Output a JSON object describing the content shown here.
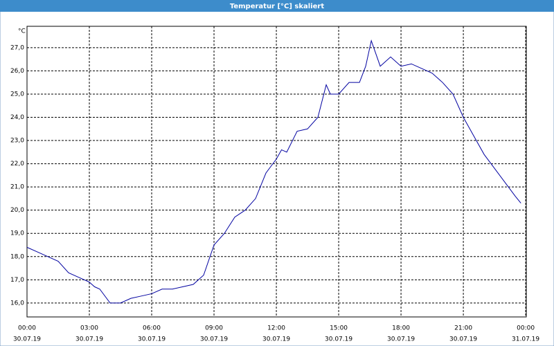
{
  "chart_data": {
    "type": "line",
    "title": "Temperatur [°C] skaliert",
    "y_unit": "°C",
    "x": [
      0,
      0.5,
      1.0,
      1.5,
      2.0,
      2.5,
      3.0,
      3.25,
      3.5,
      4.0,
      4.5,
      5.0,
      5.5,
      6.0,
      6.5,
      7.0,
      7.5,
      8.0,
      8.5,
      9.0,
      9.5,
      10.0,
      10.5,
      11.0,
      11.5,
      12.0,
      12.25,
      12.5,
      13.0,
      13.5,
      14.0,
      14.4,
      14.6,
      15.0,
      15.5,
      16.0,
      16.3,
      16.57,
      17.0,
      17.5,
      18.0,
      18.5,
      19.0,
      19.5,
      20.0,
      20.5,
      21.0,
      21.5,
      22.0,
      22.5,
      23.0,
      23.5,
      23.77
    ],
    "series": [
      {
        "name": "Temperatur",
        "color": "#0000a0",
        "values": [
          18.4,
          18.2,
          18.0,
          17.8,
          17.3,
          17.1,
          16.9,
          16.7,
          16.6,
          16.0,
          16.0,
          16.2,
          16.3,
          16.4,
          16.6,
          16.6,
          16.7,
          16.8,
          17.2,
          18.5,
          19.0,
          19.7,
          20.0,
          20.5,
          21.6,
          22.2,
          22.6,
          22.5,
          23.4,
          23.5,
          24.0,
          25.4,
          25.0,
          25.0,
          25.5,
          25.5,
          26.2,
          27.3,
          26.2,
          26.6,
          26.2,
          26.3,
          26.1,
          25.9,
          25.5,
          25.0,
          24.0,
          23.2,
          22.4,
          21.8,
          21.2,
          20.6,
          20.3
        ]
      }
    ],
    "xlim": [
      0,
      24.03
    ],
    "ylim": [
      15.4,
      27.92
    ],
    "xticks": [
      {
        "value": 0,
        "label": "00:00",
        "date": "30.07.19"
      },
      {
        "value": 3,
        "label": "03:00",
        "date": "30.07.19"
      },
      {
        "value": 6,
        "label": "06:00",
        "date": "30.07.19"
      },
      {
        "value": 9,
        "label": "09:00",
        "date": "30.07.19"
      },
      {
        "value": 12,
        "label": "12:00",
        "date": "30.07.19"
      },
      {
        "value": 15,
        "label": "15:00",
        "date": "30.07.19"
      },
      {
        "value": 18,
        "label": "18:00",
        "date": "30.07.19"
      },
      {
        "value": 21,
        "label": "21:00",
        "date": "30.07.19"
      },
      {
        "value": 24,
        "label": "00:00",
        "date": "31.07.19"
      }
    ],
    "yticks": [
      {
        "value": 16,
        "label": "16,0"
      },
      {
        "value": 17,
        "label": "17,0"
      },
      {
        "value": 18,
        "label": "18,0"
      },
      {
        "value": 19,
        "label": "19,0"
      },
      {
        "value": 20,
        "label": "20,0"
      },
      {
        "value": 21,
        "label": "21,0"
      },
      {
        "value": 22,
        "label": "22,0"
      },
      {
        "value": 23,
        "label": "23,0"
      },
      {
        "value": 24,
        "label": "24,0"
      },
      {
        "value": 25,
        "label": "25,0"
      },
      {
        "value": 26,
        "label": "26,0"
      },
      {
        "value": 27,
        "label": "27,0"
      }
    ],
    "grid": true
  }
}
